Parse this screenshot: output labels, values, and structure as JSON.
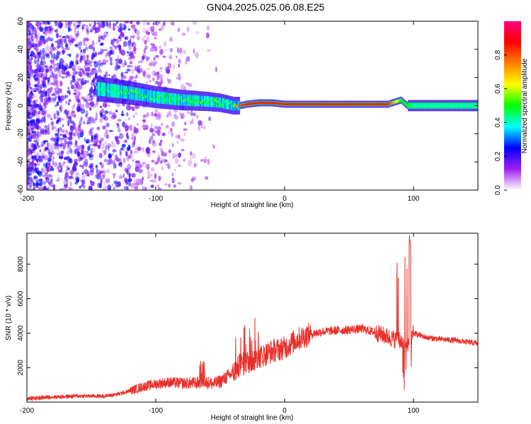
{
  "title": "GN04.2025.025.06.08.E25",
  "chart_data": [
    {
      "type": "heatmap",
      "xlabel": "Height of straight line (km)",
      "ylabel": "Frequency (Hz)",
      "xlim": [
        -200,
        150
      ],
      "ylim": [
        -60,
        60
      ],
      "xticks": [
        "-200",
        "-100",
        "0",
        "100"
      ],
      "yticks": [
        "-60",
        "-40",
        "-20",
        "0",
        "20",
        "40",
        "60"
      ],
      "colorbar": {
        "label": "Normalized spectral amplitude",
        "ticks": [
          "0.0",
          "0.2",
          "0.4",
          "0.6",
          "0.8"
        ],
        "range": [
          0,
          1
        ],
        "colors": [
          "#ffffff",
          "#a020f0",
          "#0000ff",
          "#00ffff",
          "#00ff00",
          "#ffff00",
          "#ff8000",
          "#ff0000",
          "#ff0080"
        ]
      },
      "ridge": {
        "x": [
          -145,
          -120,
          -100,
          -80,
          -60,
          -50,
          -40,
          -35,
          -30,
          -20,
          -10,
          0,
          20,
          50,
          80,
          90,
          95,
          100,
          150
        ],
        "freq": [
          12,
          9,
          6,
          4,
          3,
          2,
          0,
          0,
          1,
          2,
          2,
          1,
          1,
          1,
          1,
          4,
          0,
          0,
          0
        ],
        "amplitude": [
          0.35,
          0.4,
          0.4,
          0.4,
          0.45,
          0.4,
          0.4,
          0.8,
          0.85,
          0.85,
          0.85,
          0.85,
          0.85,
          0.85,
          0.85,
          0.5,
          0.5,
          0.4,
          0.4
        ]
      },
      "grid": false
    },
    {
      "type": "line",
      "xlabel": "Height of straight line (km)",
      "ylabel": "SNR (10 * v/v)",
      "xlim": [
        -200,
        150
      ],
      "ylim": [
        0,
        9800
      ],
      "xticks": [
        "-200",
        "-100",
        "0",
        "100"
      ],
      "yticks": [
        "2000",
        "4000",
        "6000",
        "8000"
      ],
      "series": [
        {
          "color": "#e8302a",
          "x": [
            -200,
            -180,
            -160,
            -140,
            -130,
            -120,
            -110,
            -100,
            -90,
            -80,
            -70,
            -60,
            -55,
            -50,
            -40,
            -35,
            -30,
            -25,
            -20,
            -10,
            0,
            10,
            20,
            30,
            40,
            50,
            60,
            70,
            80,
            85,
            90,
            95,
            100,
            110,
            120,
            130,
            140,
            150
          ],
          "y": [
            200,
            300,
            350,
            350,
            450,
            650,
            900,
            1050,
            1150,
            1100,
            1100,
            1150,
            1050,
            1200,
            1700,
            2100,
            2300,
            2400,
            2600,
            2950,
            3150,
            3650,
            3950,
            4100,
            4150,
            4200,
            4250,
            4050,
            3800,
            3650,
            3550,
            3200,
            4000,
            3750,
            3650,
            3600,
            3500,
            3400
          ]
        }
      ],
      "grid": false
    }
  ]
}
